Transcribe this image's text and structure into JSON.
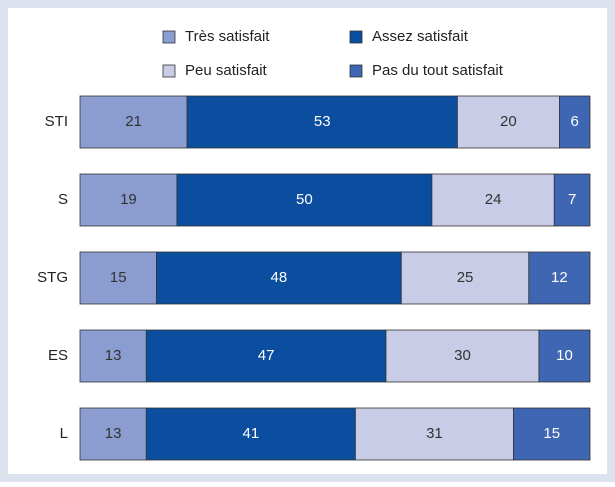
{
  "chart_data": {
    "type": "stacked_barh",
    "categories": [
      "STI",
      "S",
      "STG",
      "ES",
      "L"
    ],
    "series": [
      {
        "name": "Très satisfait",
        "color": "#8b9cd0",
        "label_color": "#333333",
        "values": [
          21,
          19,
          15,
          13,
          13
        ]
      },
      {
        "name": "Assez satisfait",
        "color": "#0b4d9e",
        "label_color": "#ffffff",
        "values": [
          53,
          50,
          48,
          47,
          41
        ]
      },
      {
        "name": "Peu satisfait",
        "color": "#c8cce6",
        "label_color": "#333333",
        "values": [
          20,
          24,
          25,
          30,
          31
        ]
      },
      {
        "name": "Pas du tout satisfait",
        "color": "#3e66b2",
        "label_color": "#ffffff",
        "values": [
          6,
          7,
          12,
          10,
          15
        ]
      }
    ]
  }
}
